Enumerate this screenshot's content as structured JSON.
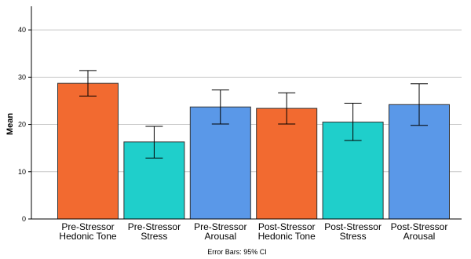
{
  "chart_data": {
    "type": "bar",
    "ylabel": "Mean",
    "xlabel": "",
    "note": "Error Bars: 95% CI",
    "ylim": [
      0,
      45
    ],
    "yticks": [
      0,
      10,
      20,
      30,
      40
    ],
    "grid": "horizontal",
    "categories": [
      [
        "Pre-Stressor",
        "Hedonic Tone"
      ],
      [
        "Pre-Stressor",
        "Stress"
      ],
      [
        "Pre-Stressor",
        "Arousal"
      ],
      [
        "Post-Stressor",
        "Hedonic Tone"
      ],
      [
        "Post-Stressor",
        "Stress"
      ],
      [
        "Post-Stressor",
        "Arousal"
      ]
    ],
    "values": [
      28.7,
      16.3,
      23.7,
      23.4,
      20.5,
      24.2
    ],
    "ci_low": [
      26.0,
      12.9,
      20.1,
      20.1,
      16.6,
      19.8
    ],
    "ci_high": [
      31.4,
      19.6,
      27.3,
      26.7,
      24.5,
      28.6
    ],
    "colors": [
      "#F26A30",
      "#1FCFCB",
      "#5A98E8",
      "#F26A30",
      "#1FCFCB",
      "#5A98E8"
    ]
  }
}
